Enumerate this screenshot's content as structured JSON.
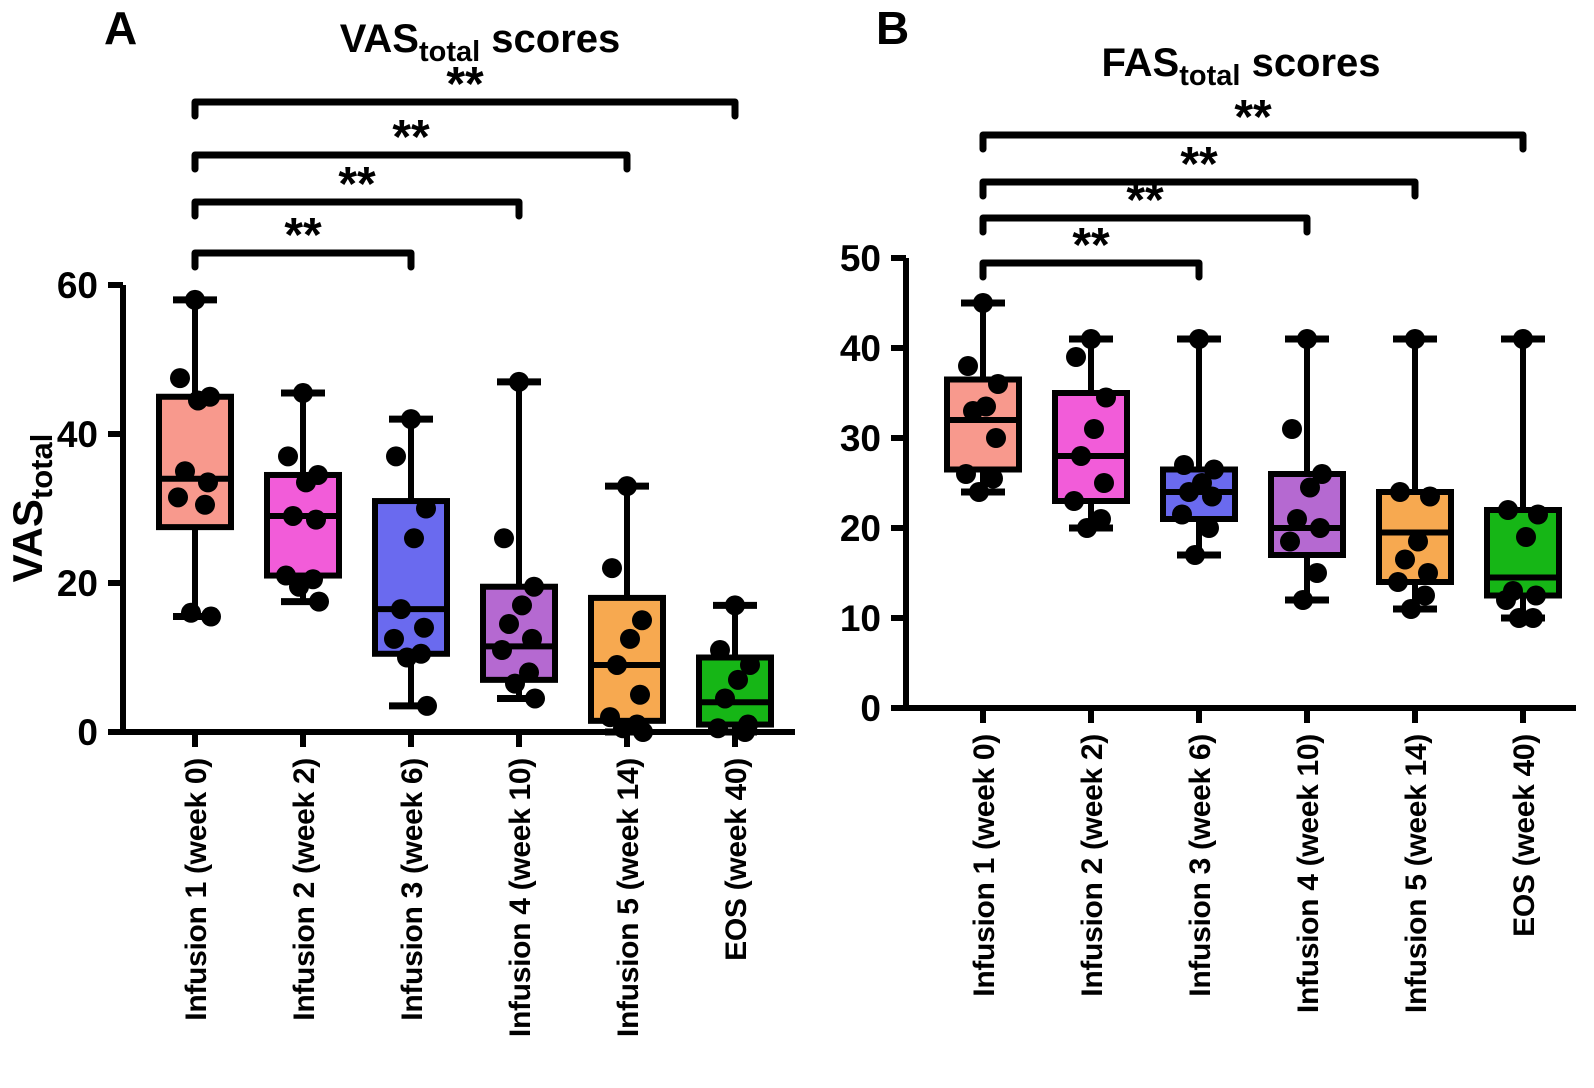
{
  "figure": {
    "background": "#FFFFFF",
    "ink": "#000000",
    "panel_labels": [
      "A",
      "B"
    ]
  },
  "chart_data": [
    {
      "type": "box",
      "panel_label": "A",
      "title": {
        "prefix": "VAS",
        "subscript": "total",
        "suffix": " scores"
      },
      "y_axis": {
        "label_prefix": "VAS",
        "label_subscript": "total",
        "ticks": [
          0,
          20,
          40,
          60
        ],
        "range": [
          0,
          60
        ],
        "grid": false
      },
      "categories": [
        "Infusion 1 (week 0)",
        "Infusion 2 (week 2)",
        "Infusion 3 (week 6)",
        "Infusion 4 (week 10)",
        "Infusion 5 (week 14)",
        "EOS (week 40)"
      ],
      "boxes": [
        {
          "category": "Infusion 1 (week 0)",
          "color": "#F8998D",
          "whisker_low": 15.5,
          "q1": 27.5,
          "median": 34,
          "q3": 45,
          "whisker_high": 58,
          "points": [
            58,
            47.5,
            45,
            44.5,
            35,
            33.5,
            31.5,
            30.5,
            16,
            15.5
          ]
        },
        {
          "category": "Infusion 2 (week 2)",
          "color": "#F25CD9",
          "whisker_low": 17.5,
          "q1": 21,
          "median": 29,
          "q3": 34.5,
          "whisker_high": 45.5,
          "points": [
            45.5,
            37,
            34.5,
            33.5,
            29,
            28.5,
            21,
            20.5,
            19.5,
            17.5
          ]
        },
        {
          "category": "Infusion 3 (week 6)",
          "color": "#6A6AEF",
          "whisker_low": 3.5,
          "q1": 10.5,
          "median": 16.5,
          "q3": 31,
          "whisker_high": 42,
          "points": [
            42,
            37,
            30,
            26,
            16.5,
            14,
            12.5,
            10.5,
            10,
            3.5
          ]
        },
        {
          "category": "Infusion 4 (week 10)",
          "color": "#B569D1",
          "whisker_low": 4.5,
          "q1": 7,
          "median": 11.5,
          "q3": 19.5,
          "whisker_high": 47,
          "points": [
            47,
            26,
            19.5,
            17,
            14.5,
            12.5,
            11,
            8,
            6.5,
            4.5
          ]
        },
        {
          "category": "Infusion 5 (week 14)",
          "color": "#F7A950",
          "whisker_low": 0,
          "q1": 1.5,
          "median": 9,
          "q3": 18,
          "whisker_high": 33,
          "points": [
            33,
            22,
            15,
            12.5,
            9,
            5,
            2,
            1,
            0.5,
            0
          ]
        },
        {
          "category": "EOS (week 40)",
          "color": "#16B616",
          "whisker_low": 0,
          "q1": 1,
          "median": 4,
          "q3": 10,
          "whisker_high": 17,
          "points": [
            17,
            11,
            9,
            7,
            4.5,
            1,
            0.5,
            0
          ]
        }
      ],
      "significance": [
        {
          "from_category": 0,
          "to_category": 5,
          "label": "**"
        },
        {
          "from_category": 0,
          "to_category": 4,
          "label": "**"
        },
        {
          "from_category": 0,
          "to_category": 3,
          "label": "**"
        },
        {
          "from_category": 0,
          "to_category": 2,
          "label": "**"
        }
      ]
    },
    {
      "type": "box",
      "panel_label": "B",
      "title": {
        "prefix": "FAS",
        "subscript": "total",
        "suffix": " scores"
      },
      "y_axis": {
        "label_prefix": "",
        "label_subscript": "",
        "ticks": [
          0,
          10,
          20,
          30,
          40,
          50
        ],
        "range": [
          0,
          50
        ],
        "grid": false
      },
      "categories": [
        "Infusion 1 (week 0)",
        "Infusion 2 (week 2)",
        "Infusion 3 (week 6)",
        "Infusion 4 (week 10)",
        "Infusion 5 (week 14)",
        "EOS (week 40)"
      ],
      "boxes": [
        {
          "category": "Infusion 1 (week 0)",
          "color": "#F8998D",
          "whisker_low": 24,
          "q1": 26.5,
          "median": 32,
          "q3": 36.5,
          "whisker_high": 45,
          "points": [
            45,
            38,
            36,
            33.5,
            33,
            30,
            26,
            25.5,
            24
          ]
        },
        {
          "category": "Infusion 2 (week 2)",
          "color": "#F25CD9",
          "whisker_low": 20,
          "q1": 23,
          "median": 28,
          "q3": 35,
          "whisker_high": 41,
          "points": [
            41,
            39,
            34.5,
            31,
            28,
            25,
            23,
            21,
            20
          ]
        },
        {
          "category": "Infusion 3 (week 6)",
          "color": "#6A6AEF",
          "whisker_low": 17,
          "q1": 21,
          "median": 24,
          "q3": 26.5,
          "whisker_high": 41,
          "points": [
            41,
            27,
            26.5,
            25,
            24,
            23.5,
            21.5,
            20,
            17
          ]
        },
        {
          "category": "Infusion 4 (week 10)",
          "color": "#B569D1",
          "whisker_low": 12,
          "q1": 17,
          "median": 20,
          "q3": 26,
          "whisker_high": 41,
          "points": [
            41,
            31,
            26,
            24.5,
            21,
            20,
            18.5,
            15,
            12
          ]
        },
        {
          "category": "Infusion 5 (week 14)",
          "color": "#F7A950",
          "whisker_low": 11,
          "q1": 14,
          "median": 19.5,
          "q3": 24,
          "whisker_high": 41,
          "points": [
            41,
            24,
            23.5,
            18.5,
            16.5,
            15,
            14,
            12.5,
            11
          ]
        },
        {
          "category": "EOS (week 40)",
          "color": "#16B616",
          "whisker_low": 10,
          "q1": 12.5,
          "median": 14.5,
          "q3": 22,
          "whisker_high": 41,
          "points": [
            41,
            22,
            21.5,
            19,
            13,
            12.5,
            12,
            10,
            10
          ]
        }
      ],
      "significance": [
        {
          "from_category": 0,
          "to_category": 5,
          "label": "**"
        },
        {
          "from_category": 0,
          "to_category": 4,
          "label": "**"
        },
        {
          "from_category": 0,
          "to_category": 3,
          "label": "**"
        },
        {
          "from_category": 0,
          "to_category": 2,
          "label": "**"
        }
      ]
    }
  ]
}
